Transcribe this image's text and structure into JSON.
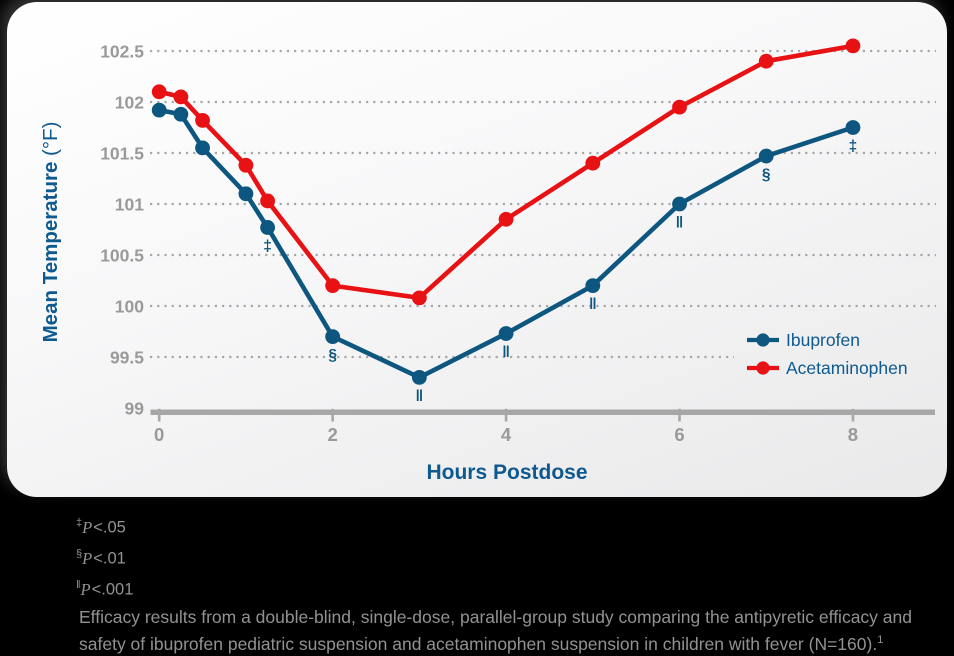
{
  "colors": {
    "ibuprofen_blue": "#0d567f",
    "acetaminophen_red": "#e81114",
    "blue_text": "#0e5a90",
    "axis_gray": "#a7a7a7",
    "tick_label_gray": "#9a9a9b",
    "footnote_gray": "#929292",
    "page_background": "#000000"
  },
  "chart_data": {
    "type": "line",
    "title": "",
    "xlabel": "Hours Postdose",
    "ylabel": "Mean Temperature (°F)",
    "x": [
      0,
      0.25,
      0.5,
      1,
      1.25,
      2,
      3,
      4,
      5,
      6,
      7,
      8
    ],
    "xticks": [
      0,
      2,
      4,
      6,
      8
    ],
    "yticks": [
      99,
      99.5,
      100,
      100.5,
      101,
      101.5,
      102,
      102.5
    ],
    "xlim": [
      0,
      8
    ],
    "ylim": [
      99,
      102.5
    ],
    "grid": "dotted horizontal gridlines",
    "legend_position": "right middle",
    "series": [
      {
        "name": "Ibuprofen",
        "color_key": "ibuprofen_blue",
        "values": [
          101.92,
          101.88,
          101.55,
          101.1,
          100.77,
          99.7,
          99.3,
          99.73,
          100.2,
          101.0,
          101.47,
          101.75
        ],
        "annotations": [
          null,
          null,
          null,
          null,
          "‡",
          "§",
          "‖",
          "‖",
          "‖",
          "‖",
          "§",
          "‡"
        ]
      },
      {
        "name": "Acetaminophen",
        "color_key": "acetaminophen_red",
        "values": [
          102.1,
          102.05,
          101.82,
          101.38,
          101.03,
          100.2,
          100.08,
          100.85,
          101.4,
          101.95,
          102.4,
          102.55
        ],
        "annotations": [
          null,
          null,
          null,
          null,
          null,
          null,
          null,
          null,
          null,
          null,
          null,
          null
        ]
      }
    ]
  },
  "footnotes": [
    {
      "symbol": "‡",
      "p": "P",
      "value": "<.05"
    },
    {
      "symbol": "§",
      "p": "P",
      "value": "<.01"
    },
    {
      "symbol": "‖",
      "p": "P",
      "value": "<.001"
    }
  ],
  "caption": {
    "text": "Efficacy results from a double-blind, single-dose, parallel-group study comparing the antipyretic efficacy and safety of ibuprofen pediatric suspension and acetaminophen suspension in children with fever (N=160).",
    "ref_mark": "1"
  }
}
